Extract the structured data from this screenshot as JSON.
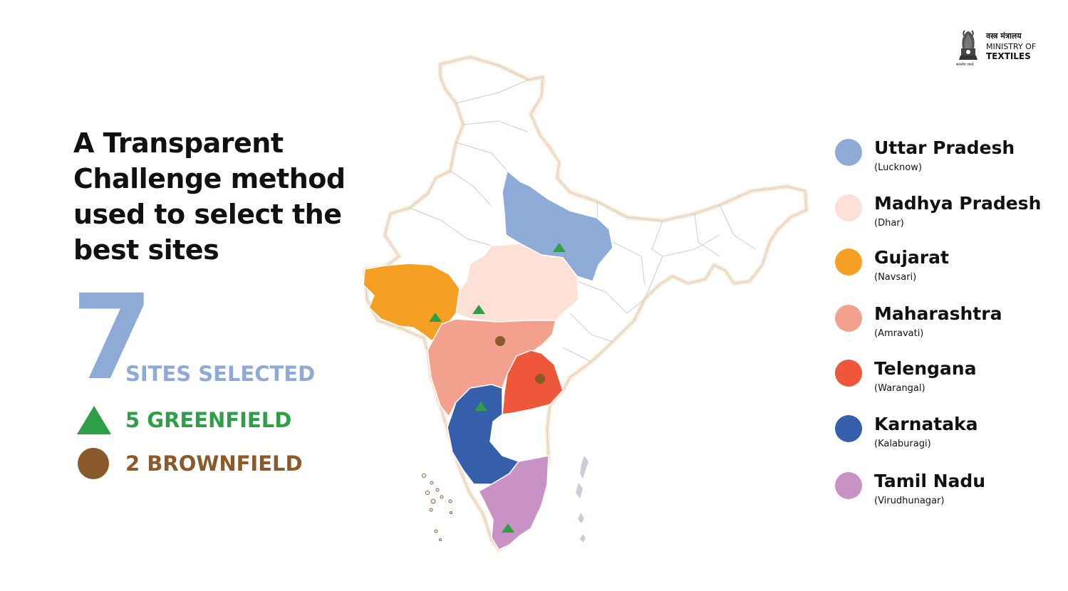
{
  "logo": {
    "hindi_name": "वस्त्र मंत्रालय",
    "name_line1": "MINISTRY OF",
    "name_line2": "TEXTILES",
    "motto": "सत्यमेव जयते"
  },
  "headline": "A Transparent Challenge method used to select the best sites",
  "summary": {
    "total": "7",
    "total_label": "SITES SELECTED",
    "greenfield_label": "5 GREENFIELD",
    "brownfield_label": "2 BROWNFIELD"
  },
  "colors": {
    "accent_blue": "#8eabd8",
    "greenfield": "#2e9f48",
    "brownfield": "#8b5a2b",
    "map_border": "#fbe7cf"
  },
  "legend": [
    {
      "state": "Uttar Pradesh",
      "city": "(Lucknow)",
      "color": "#8eabd8"
    },
    {
      "state": "Madhya Pradesh",
      "city": "(Dhar)",
      "color": "#fde0d6"
    },
    {
      "state": "Gujarat",
      "city": "(Navsari)",
      "color": "#f5a023"
    },
    {
      "state": "Maharashtra",
      "city": "(Amravati)",
      "color": "#f3a08f"
    },
    {
      "state": "Telengana",
      "city": "(Warangal)",
      "color": "#ef573b"
    },
    {
      "state": "Karnataka",
      "city": "(Kalaburagi)",
      "color": "#355faa"
    },
    {
      "state": "Tamil Nadu",
      "city": "(Virudhunagar)",
      "color": "#c893c4"
    }
  ],
  "map_markers": [
    {
      "state": "Uttar Pradesh",
      "type": "greenfield-icon"
    },
    {
      "state": "Madhya Pradesh",
      "type": "greenfield-icon"
    },
    {
      "state": "Gujarat",
      "type": "greenfield-icon"
    },
    {
      "state": "Maharashtra",
      "type": "brownfield-icon"
    },
    {
      "state": "Telengana",
      "type": "brownfield-icon"
    },
    {
      "state": "Karnataka",
      "type": "greenfield-icon"
    },
    {
      "state": "Tamil Nadu",
      "type": "greenfield-icon"
    }
  ]
}
